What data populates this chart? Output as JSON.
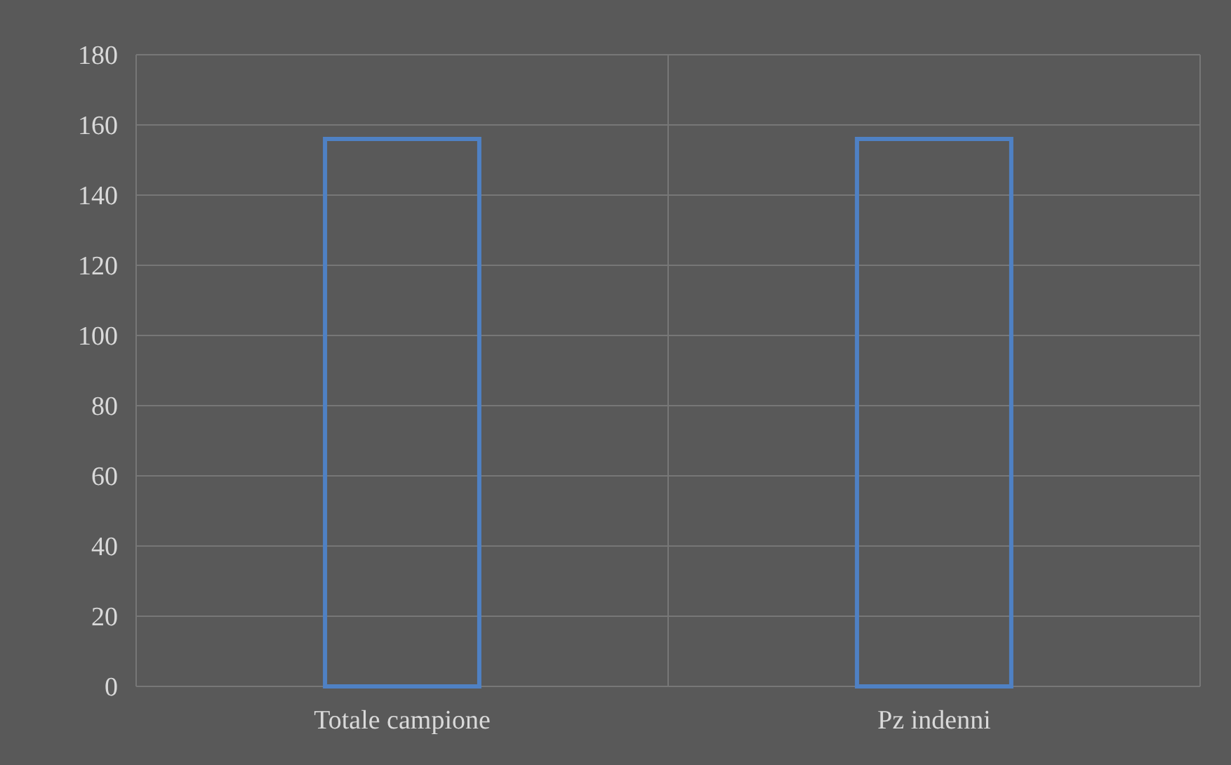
{
  "chart_data": {
    "type": "bar",
    "categories": [
      "Totale campione",
      "Pz indenni"
    ],
    "values": [
      156,
      156
    ],
    "color": "#4f81c4",
    "ylim": [
      0,
      180
    ],
    "yticks": [
      0,
      20,
      40,
      60,
      80,
      100,
      120,
      140,
      160,
      180
    ],
    "grid": true
  }
}
